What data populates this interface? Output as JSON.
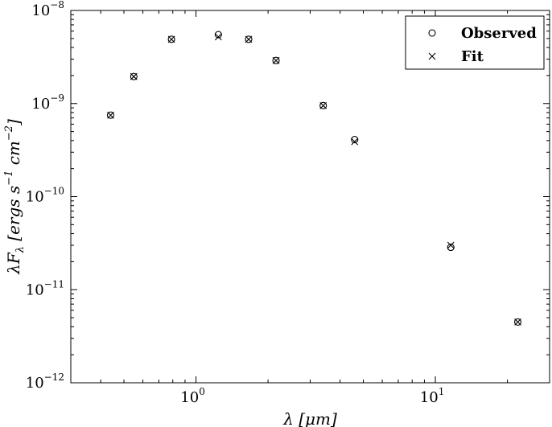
{
  "chart_data": {
    "type": "scatter",
    "xlabel": "λ [μm]",
    "ylabel": "λF_λ [ergs s^-1 cm^-2]",
    "xscale": "log",
    "yscale": "log",
    "xlim": [
      0.3,
      30
    ],
    "ylim": [
      1e-12,
      1e-08
    ],
    "grid": false,
    "legend": {
      "position": "top-right"
    },
    "x_ticks": [
      {
        "value": 1,
        "base": "10",
        "exp": "0"
      },
      {
        "value": 10,
        "base": "10",
        "exp": "1"
      }
    ],
    "y_ticks": [
      {
        "value": 1e-08,
        "base": "10",
        "exp": "−8"
      },
      {
        "value": 1e-09,
        "base": "10",
        "exp": "−9"
      },
      {
        "value": 1e-10,
        "base": "10",
        "exp": "−10"
      },
      {
        "value": 1e-11,
        "base": "10",
        "exp": "−11"
      },
      {
        "value": 1e-12,
        "base": "10",
        "exp": "−12"
      }
    ],
    "series": [
      {
        "name": "Observed",
        "marker": "circle",
        "x": [
          0.44,
          0.55,
          0.79,
          1.24,
          1.66,
          2.16,
          3.4,
          4.6,
          11.6,
          22.1
        ],
        "y": [
          7.5e-10,
          1.95e-09,
          4.9e-09,
          5.5e-09,
          4.9e-09,
          2.9e-09,
          9.5e-10,
          4.1e-10,
          2.85e-11,
          4.5e-12
        ]
      },
      {
        "name": "Fit",
        "marker": "x",
        "x": [
          0.44,
          0.55,
          0.79,
          1.24,
          1.66,
          2.16,
          3.4,
          4.6,
          11.6,
          22.1
        ],
        "y": [
          7.5e-10,
          1.95e-09,
          4.9e-09,
          5.2e-09,
          4.9e-09,
          2.9e-09,
          9.5e-10,
          3.9e-10,
          3e-11,
          4.5e-12
        ]
      }
    ]
  }
}
